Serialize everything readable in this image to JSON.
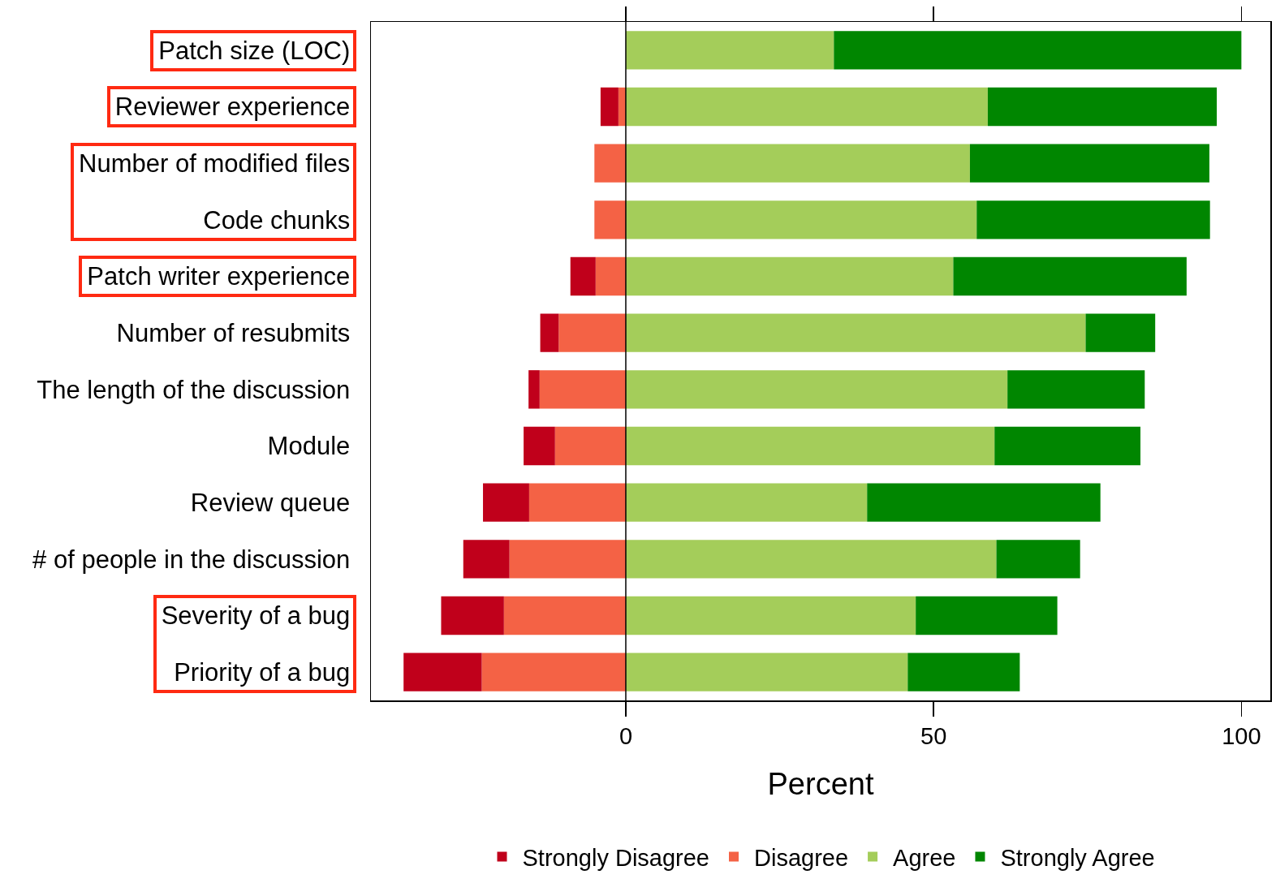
{
  "chart_data": {
    "type": "bar",
    "orientation": "horizontal",
    "stacked": true,
    "xlabel": "Percent",
    "categories": [
      "Patch size (LOC)",
      "Reviewer experience",
      "Number of modified files",
      "Code chunks",
      "Patch writer experience",
      "Number of resubmits",
      "The length of the discussion",
      "Module",
      "Review queue",
      "# of people in the discussion",
      "Severity of a bug",
      "Priority of a bug"
    ],
    "series": [
      {
        "name": "Disagree",
        "color": "#f46245",
        "values": [
          0,
          -1.2,
          -5.1,
          -5.1,
          -4.9,
          -10.9,
          -14.0,
          -11.5,
          -15.7,
          -18.9,
          -19.8,
          -23.4
        ]
      },
      {
        "name": "Strongly Disagree",
        "color": "#c0001b",
        "values": [
          0,
          -2.9,
          0,
          0,
          -4.1,
          -3.0,
          -1.8,
          -5.1,
          -7.5,
          -7.5,
          -10.2,
          -12.7
        ]
      },
      {
        "name": "Agree",
        "color": "#a4cd5a",
        "values": [
          33.8,
          58.8,
          55.9,
          57.0,
          53.2,
          74.7,
          62.0,
          59.9,
          39.2,
          60.2,
          47.1,
          45.8
        ]
      },
      {
        "name": "Strongly Agree",
        "color": "#008600",
        "values": [
          66.2,
          37.2,
          38.9,
          37.9,
          37.9,
          11.3,
          22.3,
          23.7,
          37.9,
          13.6,
          23.0,
          18.2
        ]
      }
    ],
    "xlim": [
      -41.4,
      104.7
    ],
    "xticks": [
      0,
      50,
      100
    ],
    "ref_lines": [
      {
        "axis": "x",
        "value": 0,
        "color": "#000000"
      }
    ],
    "grid": false,
    "legend": "bottom"
  }
}
